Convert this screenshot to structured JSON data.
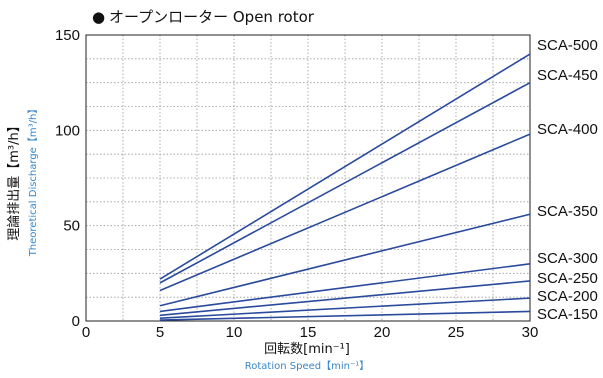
{
  "title": "オープンローター  Open rotor",
  "title_marker": "●",
  "chart_data": {
    "type": "line",
    "title": "オープンローター  Open rotor",
    "xlabel": "回転数[min⁻¹]",
    "xlabel_en": "Rotation Speed【min⁻¹】",
    "ylabel": "理論排出量【m³/h】",
    "ylabel_en": "Theoretical Discharge【m³/h】",
    "xlim": [
      0,
      30
    ],
    "ylim": [
      0,
      150
    ],
    "x_ticks": [
      0,
      5,
      10,
      15,
      20,
      25,
      30
    ],
    "y_ticks": [
      0,
      50,
      100,
      150
    ],
    "grid": true,
    "series_line_color": "#2a4a9c",
    "series": [
      {
        "name": "SCA-500",
        "x": [
          5,
          30
        ],
        "values": [
          22,
          140
        ]
      },
      {
        "name": "SCA-450",
        "x": [
          5,
          30
        ],
        "values": [
          20,
          125
        ]
      },
      {
        "name": "SCA-400",
        "x": [
          5,
          30
        ],
        "values": [
          16,
          98
        ]
      },
      {
        "name": "SCA-350",
        "x": [
          5,
          30
        ],
        "values": [
          8,
          56
        ]
      },
      {
        "name": "SCA-300",
        "x": [
          5,
          30
        ],
        "values": [
          5,
          30
        ]
      },
      {
        "name": "SCA-250",
        "x": [
          5,
          30
        ],
        "values": [
          3,
          21
        ]
      },
      {
        "name": "SCA-200",
        "x": [
          5,
          30
        ],
        "values": [
          1.5,
          12
        ]
      },
      {
        "name": "SCA-150",
        "x": [
          5,
          30
        ],
        "values": [
          0.5,
          5
        ]
      }
    ],
    "label_positions_note": ""
  }
}
